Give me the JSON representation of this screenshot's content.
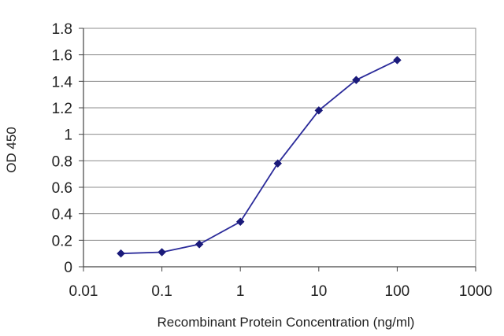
{
  "chart_data": {
    "type": "line",
    "title": "",
    "xlabel": "Recombinant Protein Concentration (ng/ml)",
    "ylabel": "OD 450",
    "xscale": "log",
    "xlim": [
      0.01,
      1000
    ],
    "ylim": [
      0,
      1.8
    ],
    "x_ticks": [
      "0.01",
      "0.1",
      "1",
      "10",
      "100",
      "1000"
    ],
    "y_ticks": [
      "0",
      "0.2",
      "0.4",
      "0.6",
      "0.8",
      "1",
      "1.2",
      "1.4",
      "1.6",
      "1.8"
    ],
    "grid": "horizontal",
    "legend": "none",
    "series": [
      {
        "x": [
          0.03,
          0.1,
          0.3,
          1,
          3,
          10,
          30,
          100
        ],
        "y": [
          0.1,
          0.11,
          0.17,
          0.34,
          0.78,
          1.18,
          1.41,
          1.56
        ]
      }
    ],
    "colors": {
      "line": "#2b2b9a",
      "marker": "#1a1a7a",
      "grid": "#8c8c8c",
      "axis": "#444444"
    }
  }
}
